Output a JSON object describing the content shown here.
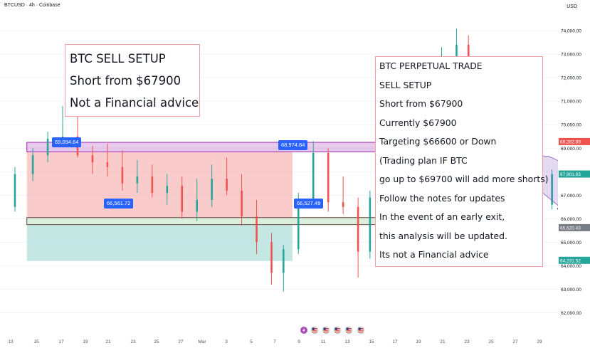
{
  "header": {
    "title": "BTCUSD · 4h · Coinbase",
    "currency": "USD"
  },
  "notes": {
    "left": [
      "BTC SELL SETUP",
      "Short from $67900",
      "Not a Financial advice"
    ],
    "right": [
      "BTC PERPETUAL TRADE",
      "SELL SETUP",
      "Short from $67900",
      "Currently $67900",
      "Targeting $66600 or Down",
      "(Trading plan IF BTC",
      "go up to $69700 will add more shorts)",
      "Follow the notes for updates",
      "In the event of an early exit,",
      "this analysis will be updated.",
      "Its not a Financial advice"
    ]
  },
  "callouts": {
    "c1": "69,094.64",
    "c2": "68,974.84",
    "c3": "66,561.72",
    "c4": "66,527.49"
  },
  "colors": {
    "up": "#26a69a",
    "down": "#ef5350",
    "resistance_zone": "#9c27b0",
    "support_zone": "#4caf50",
    "loss_zone": "#f7a8a8",
    "profit_zone": "#b2dfdb",
    "projection_arrow": "#1a237e",
    "callout": "#2962ff"
  },
  "icons": [
    "lightning-icon",
    "us-flag-icon",
    "us-flag-icon",
    "us-flag-icon",
    "us-flag-icon",
    "us-flag-icon"
  ],
  "chart_data": {
    "type": "candlestick",
    "symbol": "BTCUSD",
    "timeframe": "4h",
    "exchange": "Coinbase",
    "x_ticks": [
      "13",
      "15",
      "17",
      "19",
      "21",
      "23",
      "25",
      "27",
      "Mar",
      "3",
      "5",
      "7",
      "9",
      "11",
      "13",
      "15",
      "17",
      "19",
      "21",
      "23",
      "25",
      "27",
      "29"
    ],
    "y_ticks": [
      62000,
      63000,
      64000,
      65000,
      66000,
      67000,
      68000,
      69000,
      70000,
      71000,
      72000,
      73000,
      74000
    ],
    "y_tick_labels": [
      "62,000.00",
      "63,000.00",
      "64,000.00",
      "65,000.00",
      "66,000.00",
      "67,000.00",
      "68,000.00",
      "69,000.00",
      "70,000.00",
      "71,000.00",
      "72,000.00",
      "73,000.00",
      "74,000.00"
    ],
    "ylim": [
      61500,
      74700
    ],
    "x_range": [
      12.5,
      31.2
    ],
    "price_labels": [
      {
        "value": 69282.89,
        "text": "69,282.89",
        "color": "#ef5350"
      },
      {
        "value": 67901.63,
        "text": "67,901.63",
        "color": "#26a69a"
      },
      {
        "value": 65620.43,
        "text": "65,620.43",
        "color": "#787b86"
      },
      {
        "value": 64231.52,
        "text": "64,231.52",
        "color": "#26a69a"
      }
    ],
    "zones": [
      {
        "name": "resistance",
        "x1": 13.4,
        "x2": 29.1,
        "y1": 68850,
        "y2": 69250
      },
      {
        "name": "support",
        "x1": 13.4,
        "x2": 29.6,
        "y1": 65750,
        "y2": 66050
      },
      {
        "name": "loss",
        "x1": 13.4,
        "x2": 22.3,
        "y1": 66050,
        "y2": 68850
      },
      {
        "name": "profit",
        "x1": 13.4,
        "x2": 22.3,
        "y1": 64200,
        "y2": 65750
      }
    ],
    "candles_approx": [
      [
        13.0,
        66500,
        68200,
        66300,
        67900
      ],
      [
        13.6,
        67900,
        69000,
        67600,
        68700
      ],
      [
        14.1,
        68700,
        69700,
        68400,
        69400
      ],
      [
        14.6,
        69400,
        70800,
        69100,
        69500
      ],
      [
        15.1,
        69500,
        70600,
        68600,
        68700
      ],
      [
        15.6,
        68700,
        69100,
        67900,
        68400
      ],
      [
        16.1,
        68400,
        69200,
        67800,
        68200
      ],
      [
        16.6,
        68200,
        68900,
        67200,
        67500
      ],
      [
        17.1,
        67500,
        68500,
        67100,
        67800
      ],
      [
        17.6,
        67800,
        68300,
        66900,
        67100
      ],
      [
        18.1,
        67100,
        67900,
        66600,
        67400
      ],
      [
        18.6,
        67400,
        67800,
        66000,
        66300
      ],
      [
        19.1,
        66300,
        67700,
        65900,
        66800
      ],
      [
        19.6,
        66800,
        68300,
        66500,
        67700
      ],
      [
        20.1,
        67700,
        68600,
        67000,
        67200
      ],
      [
        20.6,
        67200,
        67900,
        65700,
        66100
      ],
      [
        21.1,
        66100,
        66800,
        64500,
        65000
      ],
      [
        21.6,
        65000,
        65400,
        63200,
        63700
      ],
      [
        22.0,
        63700,
        64900,
        62900,
        64700
      ],
      [
        22.5,
        64700,
        67100,
        64500,
        66800
      ],
      [
        23.0,
        66800,
        69300,
        66600,
        68800
      ],
      [
        23.5,
        68800,
        69000,
        66300,
        66700
      ],
      [
        24.0,
        66700,
        67800,
        66200,
        66500
      ],
      [
        24.5,
        66500,
        66900,
        63500,
        64600
      ],
      [
        24.9,
        64600,
        67200,
        64300,
        66900
      ],
      [
        25.4,
        66900,
        68300,
        66700,
        68100
      ],
      [
        25.9,
        68100,
        69300,
        67700,
        68400
      ],
      [
        26.4,
        68400,
        68700,
        67400,
        67600
      ],
      [
        26.9,
        67600,
        69800,
        67400,
        69600
      ],
      [
        27.3,
        69600,
        73300,
        69400,
        72800
      ],
      [
        27.8,
        72800,
        74100,
        72200,
        73400
      ],
      [
        28.2,
        73400,
        73800,
        71400,
        71700
      ],
      [
        28.6,
        71700,
        72100,
        69700,
        70100
      ],
      [
        29.0,
        70100,
        70400,
        68700,
        68900
      ],
      [
        29.4,
        68900,
        69200,
        67800,
        68100
      ],
      [
        29.8,
        68100,
        68600,
        67200,
        67500
      ],
      [
        30.2,
        67500,
        67900,
        66500,
        66900
      ],
      [
        30.6,
        66900,
        67300,
        66200,
        66600
      ],
      [
        31.0,
        66600,
        68100,
        66400,
        67900
      ]
    ]
  }
}
